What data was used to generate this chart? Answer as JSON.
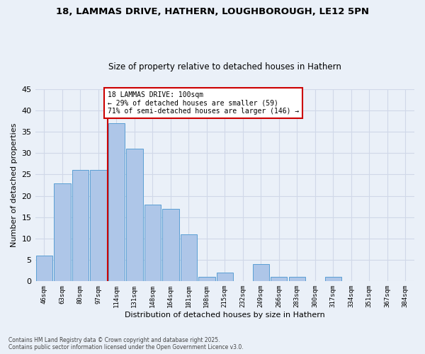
{
  "title_line1": "18, LAMMAS DRIVE, HATHERN, LOUGHBOROUGH, LE12 5PN",
  "title_line2": "Size of property relative to detached houses in Hathern",
  "xlabel": "Distribution of detached houses by size in Hathern",
  "ylabel": "Number of detached properties",
  "bin_labels": [
    "46sqm",
    "63sqm",
    "80sqm",
    "97sqm",
    "114sqm",
    "131sqm",
    "148sqm",
    "164sqm",
    "181sqm",
    "198sqm",
    "215sqm",
    "232sqm",
    "249sqm",
    "266sqm",
    "283sqm",
    "300sqm",
    "317sqm",
    "334sqm",
    "351sqm",
    "367sqm",
    "384sqm"
  ],
  "bar_values": [
    6,
    23,
    26,
    26,
    37,
    31,
    18,
    17,
    11,
    1,
    2,
    0,
    4,
    1,
    1,
    0,
    1,
    0,
    0,
    0,
    0
  ],
  "bar_color": "#aec6e8",
  "bar_edge_color": "#5a9fd4",
  "grid_color": "#d0d8e8",
  "background_color": "#eaf0f8",
  "vline_x": 3.5,
  "annotation_text": "18 LAMMAS DRIVE: 100sqm\n← 29% of detached houses are smaller (59)\n71% of semi-detached houses are larger (146) →",
  "annotation_box_color": "#ffffff",
  "annotation_box_edge": "#cc0000",
  "vline_color": "#cc0000",
  "ylim": [
    0,
    45
  ],
  "yticks": [
    0,
    5,
    10,
    15,
    20,
    25,
    30,
    35,
    40,
    45
  ],
  "footnote": "Contains HM Land Registry data © Crown copyright and database right 2025.\nContains public sector information licensed under the Open Government Licence v3.0."
}
